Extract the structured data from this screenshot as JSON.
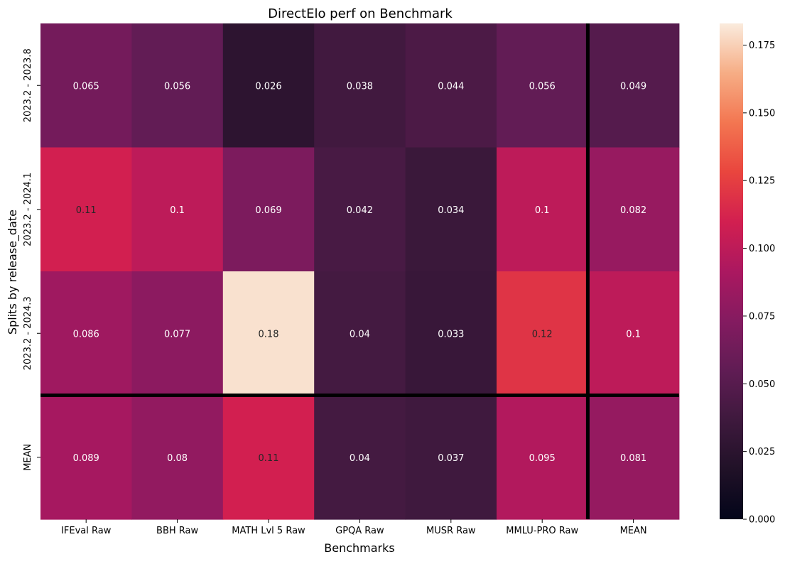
{
  "chart_data": {
    "type": "heatmap",
    "title": "DirectElo perf on Benchmark",
    "xlabel": "Benchmarks",
    "ylabel": "Splits by release_date",
    "columns": [
      "IFEval Raw",
      "BBH Raw",
      "MATH Lvl 5 Raw",
      "GPQA Raw",
      "MUSR Raw",
      "MMLU-PRO Raw",
      "MEAN"
    ],
    "rows": [
      "2023.2 - 2023.8",
      "2023.2 - 2024.1",
      "2023.2 - 2024.3",
      "MEAN"
    ],
    "values": [
      [
        0.065,
        0.056,
        0.026,
        0.038,
        0.044,
        0.056,
        0.049
      ],
      [
        0.11,
        0.1,
        0.069,
        0.042,
        0.034,
        0.1,
        0.082
      ],
      [
        0.086,
        0.077,
        0.18,
        0.04,
        0.033,
        0.12,
        0.1
      ],
      [
        0.089,
        0.08,
        0.11,
        0.04,
        0.037,
        0.095,
        0.081
      ]
    ],
    "value_labels": [
      [
        "0.065",
        "0.056",
        "0.026",
        "0.038",
        "0.044",
        "0.056",
        "0.049"
      ],
      [
        "0.11",
        "0.1",
        "0.069",
        "0.042",
        "0.034",
        "0.1",
        "0.082"
      ],
      [
        "0.086",
        "0.077",
        "0.18",
        "0.04",
        "0.033",
        "0.12",
        "0.1"
      ],
      [
        "0.089",
        "0.08",
        "0.11",
        "0.04",
        "0.037",
        "0.095",
        "0.081"
      ]
    ],
    "colorbar": {
      "range": [
        0.0,
        0.183
      ],
      "ticks": [
        0.0,
        0.025,
        0.05,
        0.075,
        0.1,
        0.125,
        0.15,
        0.175
      ],
      "tick_labels": [
        "0.000",
        "0.025",
        "0.050",
        "0.075",
        "0.100",
        "0.125",
        "0.150",
        "0.175"
      ],
      "colormap": "rocket"
    },
    "separators": {
      "after_row": 3,
      "after_column": 6
    },
    "grid": false,
    "legend": "colorbar-right"
  }
}
